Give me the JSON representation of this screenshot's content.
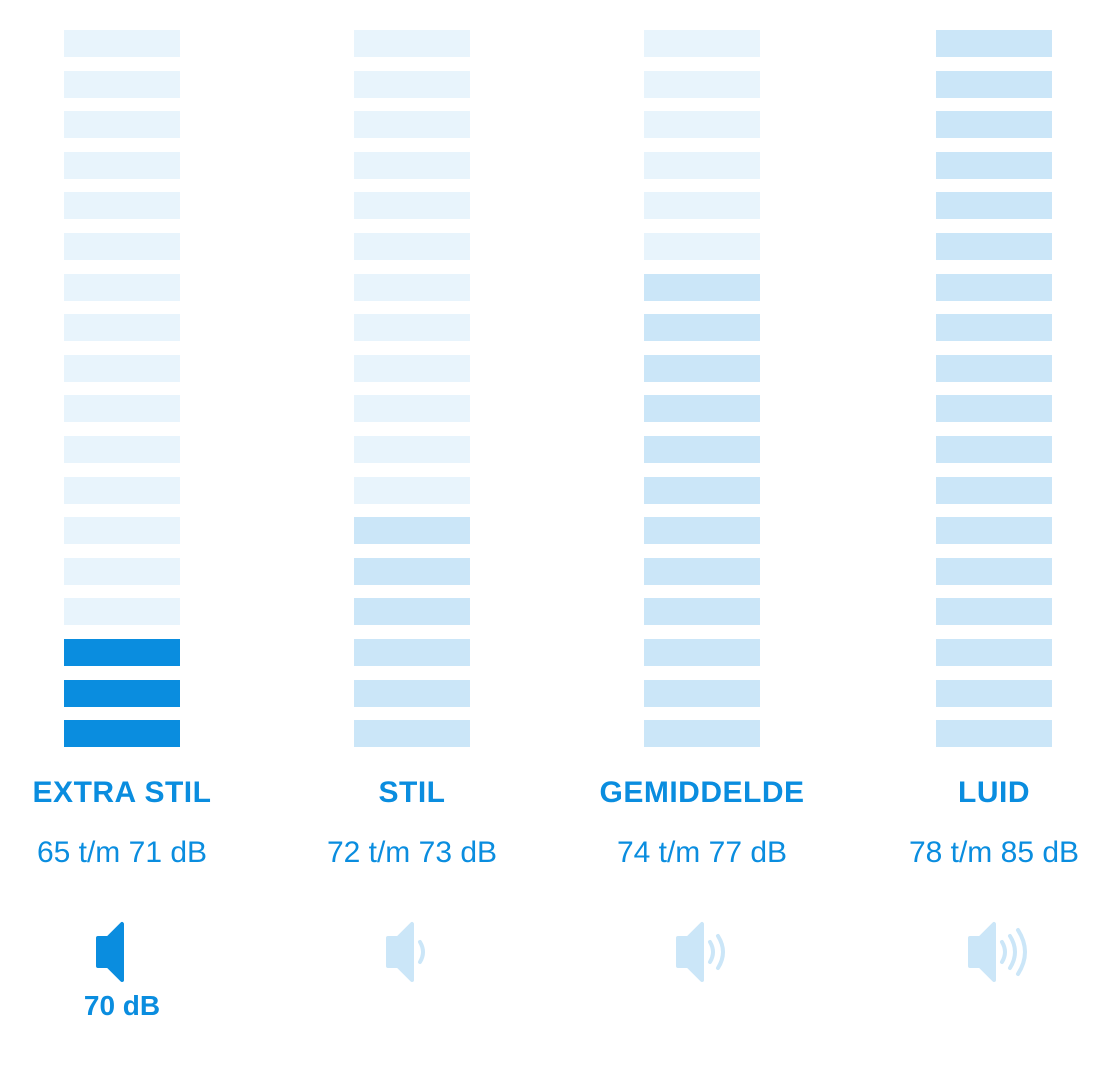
{
  "colors": {
    "accent": "#0a8ddf",
    "bar_inactive": "#e8f4fc",
    "bar_range": "#cbe6f8",
    "icon_inactive": "#cbe6f8"
  },
  "meter": {
    "segments_per_column": 18
  },
  "columns": [
    {
      "label": "EXTRA STIL",
      "range": "65 t/m 71 dB",
      "filled_segments": 3,
      "fill_style": "accent",
      "icon": "speaker-0-waves-icon",
      "active": true,
      "current_value": "70 dB"
    },
    {
      "label": "STIL",
      "range": "72 t/m 73 dB",
      "filled_segments": 6,
      "fill_style": "range",
      "icon": "speaker-1-wave-icon",
      "active": false
    },
    {
      "label": "GEMIDDELDE",
      "range": "74 t/m 77 dB",
      "filled_segments": 12,
      "fill_style": "range",
      "icon": "speaker-2-waves-icon",
      "active": false
    },
    {
      "label": "LUID",
      "range": "78 t/m 85 dB",
      "filled_segments": 18,
      "fill_style": "range",
      "icon": "speaker-3-waves-icon",
      "active": false
    }
  ]
}
